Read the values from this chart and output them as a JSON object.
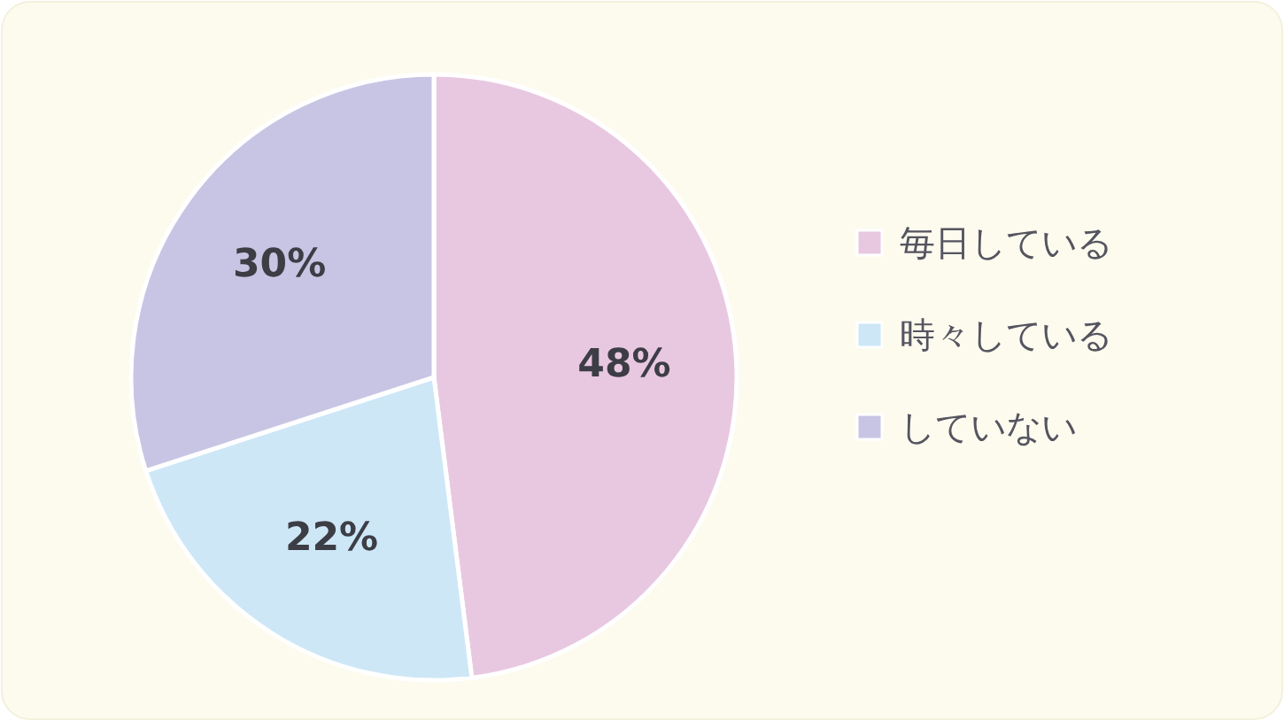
{
  "chart_data": {
    "type": "pie",
    "categories": [
      "毎日している",
      "時々している",
      "していない"
    ],
    "values": [
      48,
      22,
      30
    ],
    "colors": [
      "#e8c8e1",
      "#cde7f7",
      "#c8c5e4"
    ],
    "value_labels": [
      "48%",
      "22%",
      "30%"
    ],
    "legend": "right"
  }
}
